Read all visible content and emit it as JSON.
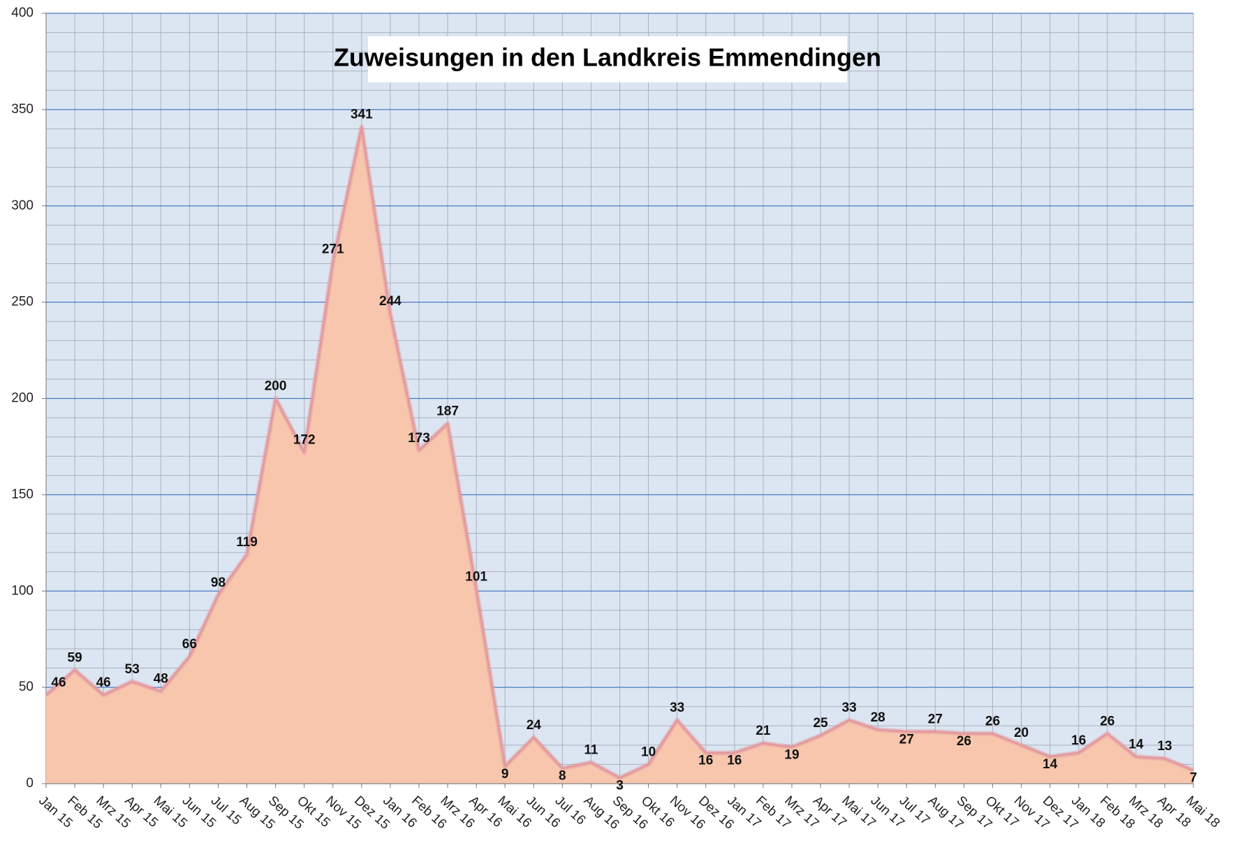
{
  "chart_data": {
    "type": "area",
    "title": "Zuweisungen in den Landkreis Emmendingen",
    "categories": [
      "Jan 15",
      "Feb 15",
      "Mrz 15",
      "Apr 15",
      "Mai 15",
      "Jun 15",
      "Jul 15",
      "Aug 15",
      "Sep 15",
      "Okt 15",
      "Nov 15",
      "Dez 15",
      "Jan 16",
      "Feb 16",
      "Mrz 16",
      "Apr 16",
      "Mai 16",
      "Jun 16",
      "Jul 16",
      "Aug 16",
      "Sep 16",
      "Okt 16",
      "Nov 16",
      "Dez 16",
      "Jan 17",
      "Feb 17",
      "Mrz 17",
      "Apr 17",
      "Mai 17",
      "Jun 17",
      "Jul 17",
      "Aug 17",
      "Sep 17",
      "Okt 17",
      "Nov 17",
      "Dez 17",
      "Jan 18",
      "Feb 18",
      "Mrz 18",
      "Apr 18",
      "Mai 18"
    ],
    "values": [
      46,
      59,
      46,
      53,
      48,
      66,
      98,
      119,
      200,
      172,
      271,
      341,
      244,
      173,
      187,
      101,
      9,
      24,
      8,
      11,
      3,
      10,
      33,
      16,
      16,
      21,
      19,
      25,
      33,
      28,
      27,
      27,
      26,
      26,
      20,
      14,
      16,
      26,
      14,
      13,
      7
    ],
    "color": "#f7c6ad",
    "line_color": "#e39a9e",
    "ylim": [
      0,
      400
    ],
    "yticks": [
      0,
      50,
      100,
      150,
      200,
      250,
      300,
      350,
      400
    ],
    "grid": true
  }
}
